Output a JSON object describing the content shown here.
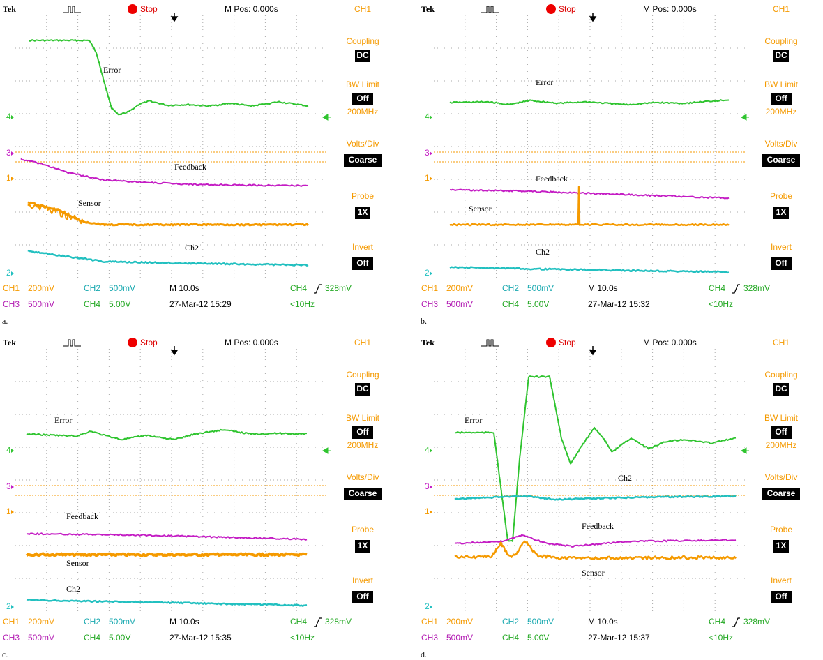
{
  "panels": [
    {
      "caption": "a.",
      "brand": "Tek",
      "state": "Stop",
      "position": "M Pos: 0.000s",
      "menu_title": "CH1",
      "menu": [
        {
          "label": "Coupling",
          "value": "DC"
        },
        {
          "label": "BW Limit",
          "value": "Off",
          "note": "200MHz"
        },
        {
          "label": "Volts/Div",
          "value": "Coarse"
        },
        {
          "label": "Probe",
          "value": "1X"
        },
        {
          "label": "Invert",
          "value": "Off"
        }
      ],
      "status": [
        [
          {
            "channel": "CH1",
            "setting": "200mV"
          },
          {
            "channel": "CH2",
            "setting": "500mV"
          }
        ],
        [
          {
            "channel": "CH3",
            "setting": "500mV"
          },
          {
            "channel": "CH4",
            "setting": "5.00V"
          }
        ]
      ],
      "timebase": "M 10.0s",
      "trigger": {
        "channel": "CH4",
        "level": "328mV"
      },
      "timestamp": "27-Mar-12 15:29",
      "frequency": "<10Hz",
      "markers": [
        "4",
        "3",
        "1",
        "2"
      ],
      "trace_labels": [
        "Error",
        "Feedback",
        "Sensor",
        "Ch2"
      ]
    },
    {
      "caption": "b.",
      "brand": "Tek",
      "state": "Stop",
      "position": "M Pos: 0.000s",
      "menu_title": "CH1",
      "menu": [
        {
          "label": "Coupling",
          "value": "DC"
        },
        {
          "label": "BW Limit",
          "value": "Off",
          "note": "200MHz"
        },
        {
          "label": "Volts/Div",
          "value": "Coarse"
        },
        {
          "label": "Probe",
          "value": "1X"
        },
        {
          "label": "Invert",
          "value": "Off"
        }
      ],
      "status": [
        [
          {
            "channel": "CH1",
            "setting": "200mV"
          },
          {
            "channel": "CH2",
            "setting": "500mV"
          }
        ],
        [
          {
            "channel": "CH3",
            "setting": "500mV"
          },
          {
            "channel": "CH4",
            "setting": "5.00V"
          }
        ]
      ],
      "timebase": "M 10.0s",
      "trigger": {
        "channel": "CH4",
        "level": "328mV"
      },
      "timestamp": "27-Mar-12 15:32",
      "frequency": "<10Hz",
      "markers": [
        "4",
        "3",
        "1",
        "2"
      ],
      "trace_labels": [
        "Error",
        "Feedback",
        "Sensor",
        "Ch2"
      ]
    },
    {
      "caption": "c.",
      "brand": "Tek",
      "state": "Stop",
      "position": "M Pos: 0.000s",
      "menu_title": "CH1",
      "menu": [
        {
          "label": "Coupling",
          "value": "DC"
        },
        {
          "label": "BW Limit",
          "value": "Off",
          "note": "200MHz"
        },
        {
          "label": "Volts/Div",
          "value": "Coarse"
        },
        {
          "label": "Probe",
          "value": "1X"
        },
        {
          "label": "Invert",
          "value": "Off"
        }
      ],
      "status": [
        [
          {
            "channel": "CH1",
            "setting": "200mV"
          },
          {
            "channel": "CH2",
            "setting": "500mV"
          }
        ],
        [
          {
            "channel": "CH3",
            "setting": "500mV"
          },
          {
            "channel": "CH4",
            "setting": "5.00V"
          }
        ]
      ],
      "timebase": "M 10.0s",
      "trigger": {
        "channel": "CH4",
        "level": "328mV"
      },
      "timestamp": "27-Mar-12 15:35",
      "frequency": "<10Hz",
      "markers": [
        "4",
        "3",
        "1",
        "2"
      ],
      "trace_labels": [
        "Error",
        "Feedback",
        "Sensor",
        "Ch2"
      ]
    },
    {
      "caption": "d.",
      "brand": "Tek",
      "state": "Stop",
      "position": "M Pos: 0.000s",
      "menu_title": "CH1",
      "menu": [
        {
          "label": "Coupling",
          "value": "DC"
        },
        {
          "label": "BW Limit",
          "value": "Off",
          "note": "200MHz"
        },
        {
          "label": "Volts/Div",
          "value": "Coarse"
        },
        {
          "label": "Probe",
          "value": "1X"
        },
        {
          "label": "Invert",
          "value": "Off"
        }
      ],
      "status": [
        [
          {
            "channel": "CH1",
            "setting": "200mV"
          },
          {
            "channel": "CH2",
            "setting": "500mV"
          }
        ],
        [
          {
            "channel": "CH3",
            "setting": "500mV"
          },
          {
            "channel": "CH4",
            "setting": "5.00V"
          }
        ]
      ],
      "timebase": "M 10.0s",
      "trigger": {
        "channel": "CH4",
        "level": "328mV"
      },
      "timestamp": "27-Mar-12 15:37",
      "frequency": "<10Hz",
      "markers": [
        "4",
        "3",
        "1",
        "2"
      ],
      "trace_labels": [
        "Error",
        "Ch2",
        "Feedback",
        "Sensor"
      ]
    }
  ]
}
